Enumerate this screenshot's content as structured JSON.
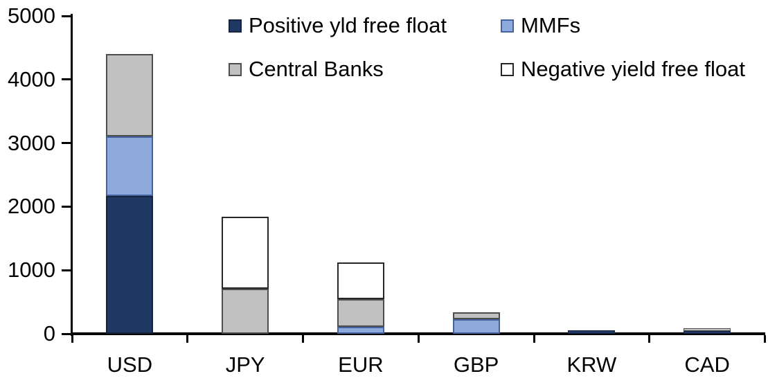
{
  "chart_data": {
    "type": "bar",
    "stacked": true,
    "title": "",
    "xlabel": "",
    "ylabel": "",
    "categories": [
      "USD",
      "JPY",
      "EUR",
      "GBP",
      "KRW",
      "CAD"
    ],
    "series": [
      {
        "name": "Positive yld free float",
        "color": "#1F3864",
        "border": "#14243E",
        "values": [
          2170,
          0,
          0,
          0,
          50,
          40
        ]
      },
      {
        "name": "MMFs",
        "color": "#8EA9DB",
        "border": "#44629F",
        "values": [
          940,
          0,
          110,
          225,
          0,
          0
        ]
      },
      {
        "name": "Central Banks",
        "color": "#C1C1C1",
        "border": "#4D4D4D",
        "values": [
          1290,
          710,
          435,
          110,
          0,
          50
        ]
      },
      {
        "name": "Negative yield free float",
        "color": "#FFFFFF",
        "border": "#262626",
        "values": [
          0,
          1130,
          575,
          0,
          0,
          0
        ]
      }
    ],
    "totals": {
      "USD": 4400,
      "JPY": 1840,
      "EUR": 1120,
      "GBP": 335,
      "KRW": 50,
      "CAD": 90
    },
    "ylim": [
      0,
      5000
    ],
    "ytick_step": 1000,
    "ytick_labels": [
      "0",
      "1000",
      "2000",
      "3000",
      "4000",
      "5000"
    ],
    "grid": false,
    "legend_position": "top",
    "legend_columns": 2,
    "axis_color": "#000000",
    "background": "#FFFFFF"
  }
}
